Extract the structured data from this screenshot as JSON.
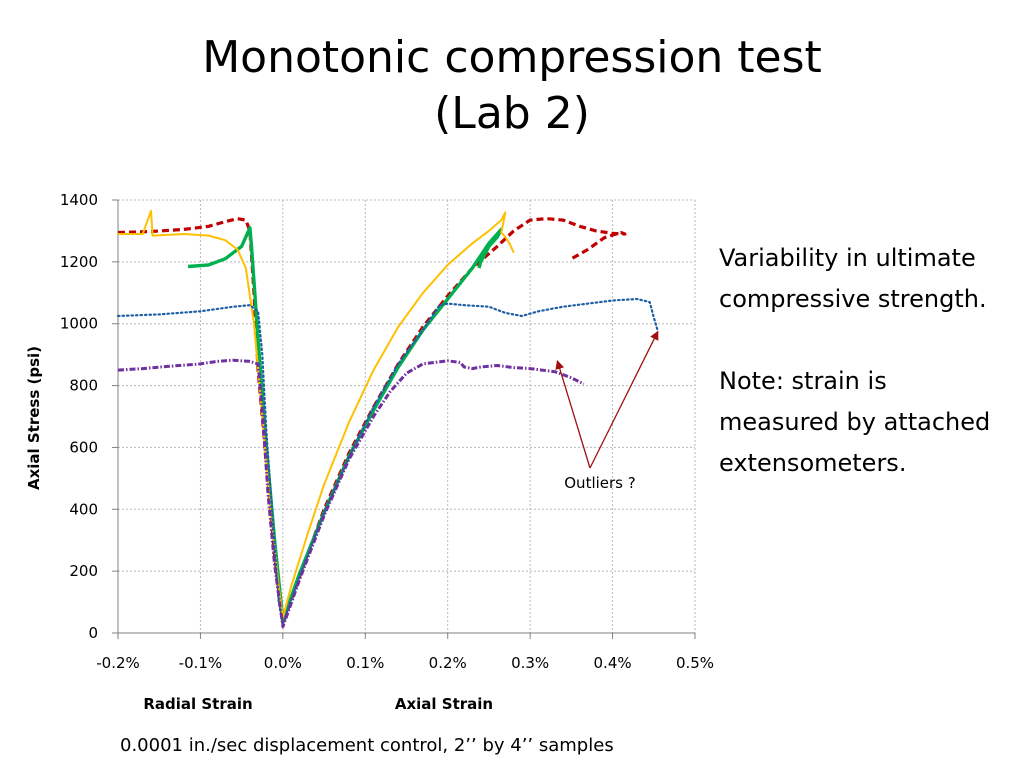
{
  "slide": {
    "title_line1": "Monotonic compression test",
    "title_line2": "(Lab 2)",
    "notes": [
      "Variability in ultimate compressive strength.",
      "Note: strain is measured by attached extensometers."
    ],
    "footer": "0.0001 in./sec displacement control, 2’’ by 4’’ samples"
  },
  "chart_data": {
    "type": "line",
    "title": "",
    "ylabel": "Axial Stress (psi)",
    "xlabels": [
      "Radial Strain",
      "Axial Strain"
    ],
    "xlim": [
      -0.2,
      0.5
    ],
    "ylim": [
      0,
      1400
    ],
    "x_unit": "%",
    "x_ticks": [
      "-0.2%",
      "-0.1%",
      "0.0%",
      "0.1%",
      "0.2%",
      "0.3%",
      "0.4%",
      "0.5%"
    ],
    "y_ticks": [
      "0",
      "200",
      "400",
      "600",
      "800",
      "1000",
      "1200",
      "1400"
    ],
    "grid": true,
    "annotation": {
      "text": "Outliers ?",
      "points_to": [
        [
          0.333,
          880
        ],
        [
          0.455,
          975
        ]
      ]
    },
    "series": [
      {
        "color": "#c00000",
        "style": "dashed-heavy",
        "points": [
          [
            -0.2,
            1295
          ],
          [
            -0.16,
            1298
          ],
          [
            -0.12,
            1305
          ],
          [
            -0.09,
            1315
          ],
          [
            -0.07,
            1330
          ],
          [
            -0.055,
            1340
          ],
          [
            -0.045,
            1335
          ],
          [
            -0.04,
            1300
          ],
          [
            -0.035,
            1100
          ],
          [
            -0.03,
            850
          ],
          [
            -0.02,
            550
          ],
          [
            -0.01,
            250
          ],
          [
            0,
            30
          ],
          [
            0.02,
            180
          ],
          [
            0.05,
            400
          ],
          [
            0.08,
            580
          ],
          [
            0.11,
            730
          ],
          [
            0.14,
            870
          ],
          [
            0.17,
            990
          ],
          [
            0.2,
            1090
          ],
          [
            0.23,
            1180
          ],
          [
            0.26,
            1250
          ],
          [
            0.28,
            1300
          ],
          [
            0.3,
            1335
          ],
          [
            0.32,
            1340
          ],
          [
            0.34,
            1335
          ],
          [
            0.36,
            1315
          ],
          [
            0.38,
            1300
          ],
          [
            0.4,
            1292
          ],
          [
            0.415,
            1290
          ],
          [
            0.41,
            1295
          ],
          [
            0.39,
            1278
          ],
          [
            0.37,
            1240
          ],
          [
            0.35,
            1210
          ]
        ]
      },
      {
        "color": "#00b050",
        "style": "solid-heavy",
        "points": [
          [
            -0.115,
            1185
          ],
          [
            -0.09,
            1190
          ],
          [
            -0.07,
            1210
          ],
          [
            -0.05,
            1250
          ],
          [
            -0.04,
            1310
          ],
          [
            -0.038,
            1250
          ],
          [
            -0.03,
            950
          ],
          [
            -0.02,
            600
          ],
          [
            -0.01,
            300
          ],
          [
            0,
            40
          ],
          [
            0.02,
            190
          ],
          [
            0.05,
            390
          ],
          [
            0.08,
            570
          ],
          [
            0.11,
            720
          ],
          [
            0.14,
            860
          ],
          [
            0.17,
            980
          ],
          [
            0.2,
            1080
          ],
          [
            0.23,
            1180
          ],
          [
            0.25,
            1260
          ],
          [
            0.265,
            1305
          ],
          [
            0.26,
            1280
          ],
          [
            0.25,
            1250
          ],
          [
            0.24,
            1200
          ],
          [
            0.238,
            1180
          ]
        ]
      },
      {
        "color": "#ffc000",
        "style": "solid",
        "points": [
          [
            -0.2,
            1290
          ],
          [
            -0.17,
            1290
          ],
          [
            -0.16,
            1365
          ],
          [
            -0.158,
            1285
          ],
          [
            -0.12,
            1290
          ],
          [
            -0.09,
            1285
          ],
          [
            -0.07,
            1270
          ],
          [
            -0.055,
            1240
          ],
          [
            -0.045,
            1180
          ],
          [
            -0.035,
            1000
          ],
          [
            -0.025,
            700
          ],
          [
            -0.015,
            400
          ],
          [
            -0.005,
            150
          ],
          [
            0,
            50
          ],
          [
            0.01,
            150
          ],
          [
            0.03,
            320
          ],
          [
            0.05,
            480
          ],
          [
            0.08,
            680
          ],
          [
            0.11,
            850
          ],
          [
            0.14,
            990
          ],
          [
            0.17,
            1100
          ],
          [
            0.2,
            1190
          ],
          [
            0.23,
            1260
          ],
          [
            0.25,
            1300
          ],
          [
            0.265,
            1335
          ],
          [
            0.27,
            1360
          ],
          [
            0.265,
            1295
          ],
          [
            0.27,
            1280
          ],
          [
            0.275,
            1260
          ],
          [
            0.28,
            1230
          ]
        ]
      },
      {
        "color": "#1f5fa6",
        "style": "dotted",
        "points": [
          [
            -0.2,
            1025
          ],
          [
            -0.15,
            1030
          ],
          [
            -0.1,
            1040
          ],
          [
            -0.06,
            1055
          ],
          [
            -0.04,
            1060
          ],
          [
            -0.03,
            1040
          ],
          [
            -0.025,
            900
          ],
          [
            -0.02,
            650
          ],
          [
            -0.012,
            350
          ],
          [
            -0.005,
            100
          ],
          [
            0,
            30
          ],
          [
            0.02,
            180
          ],
          [
            0.05,
            390
          ],
          [
            0.08,
            570
          ],
          [
            0.11,
            730
          ],
          [
            0.14,
            870
          ],
          [
            0.17,
            980
          ],
          [
            0.19,
            1060
          ],
          [
            0.2,
            1065
          ],
          [
            0.22,
            1060
          ],
          [
            0.25,
            1055
          ],
          [
            0.27,
            1035
          ],
          [
            0.29,
            1025
          ],
          [
            0.31,
            1040
          ],
          [
            0.34,
            1055
          ],
          [
            0.37,
            1065
          ],
          [
            0.4,
            1075
          ],
          [
            0.43,
            1080
          ],
          [
            0.445,
            1070
          ],
          [
            0.45,
            1020
          ],
          [
            0.455,
            975
          ]
        ]
      },
      {
        "color": "#7030a0",
        "style": "dash-dot",
        "points": [
          [
            -0.2,
            850
          ],
          [
            -0.17,
            855
          ],
          [
            -0.14,
            862
          ],
          [
            -0.1,
            870
          ],
          [
            -0.08,
            878
          ],
          [
            -0.06,
            882
          ],
          [
            -0.04,
            878
          ],
          [
            -0.03,
            870
          ],
          [
            -0.025,
            720
          ],
          [
            -0.018,
            450
          ],
          [
            -0.01,
            220
          ],
          [
            0,
            20
          ],
          [
            0.02,
            170
          ],
          [
            0.05,
            380
          ],
          [
            0.08,
            560
          ],
          [
            0.11,
            700
          ],
          [
            0.13,
            780
          ],
          [
            0.15,
            840
          ],
          [
            0.17,
            870
          ],
          [
            0.2,
            880
          ],
          [
            0.215,
            875
          ],
          [
            0.22,
            860
          ],
          [
            0.23,
            855
          ],
          [
            0.24,
            860
          ],
          [
            0.26,
            865
          ],
          [
            0.28,
            858
          ],
          [
            0.3,
            855
          ],
          [
            0.33,
            845
          ],
          [
            0.35,
            825
          ],
          [
            0.365,
            805
          ]
        ]
      }
    ]
  }
}
